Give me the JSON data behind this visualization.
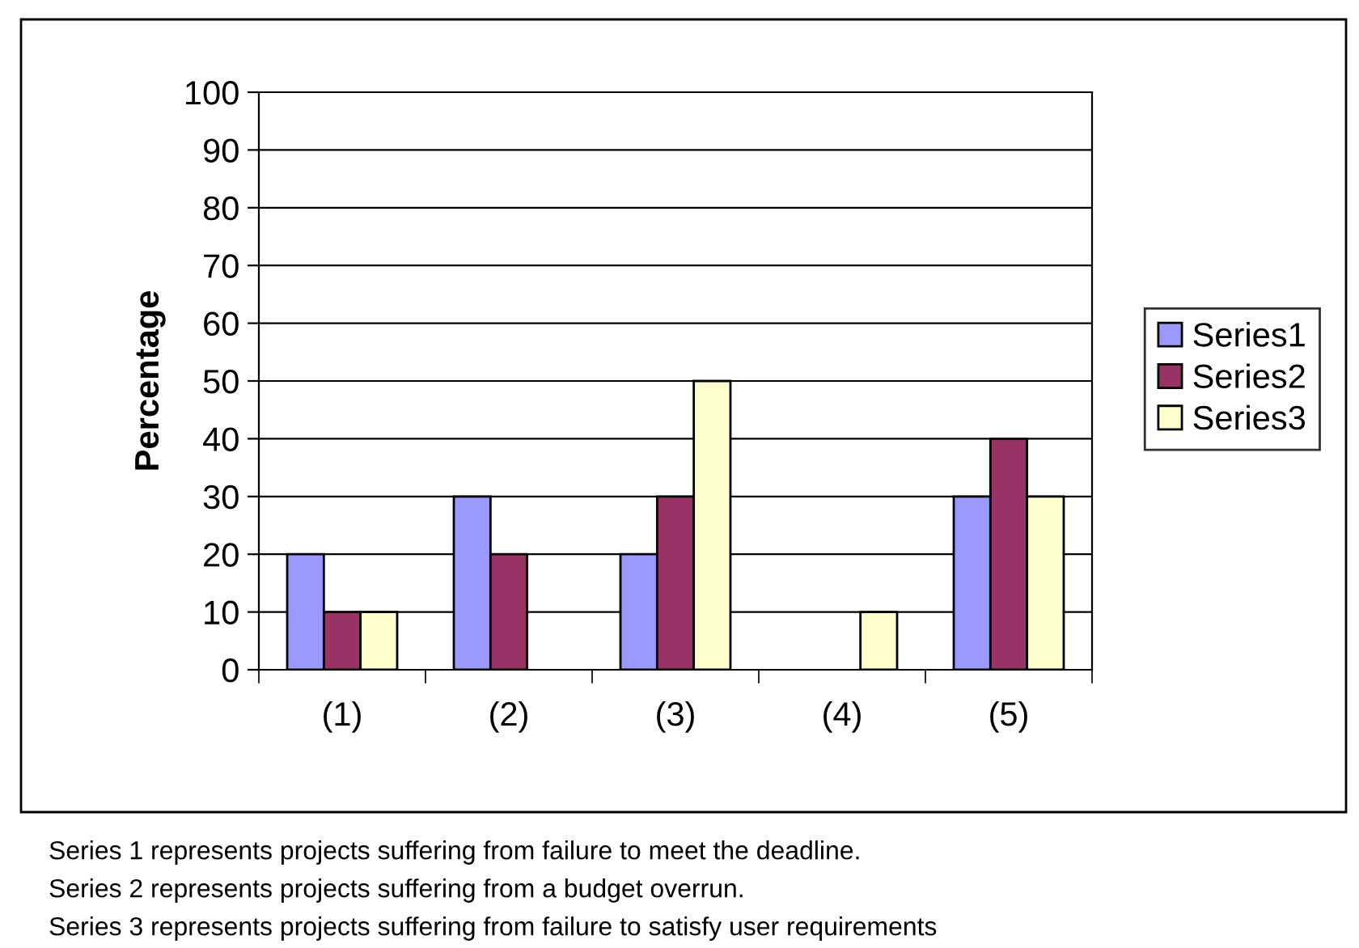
{
  "chart_data": {
    "type": "bar",
    "ylabel": "Percentage",
    "categories": [
      "(1)",
      "(2)",
      "(3)",
      "(4)",
      "(5)"
    ],
    "series": [
      {
        "name": "Series1",
        "color": "#9999ff",
        "values": [
          20,
          30,
          20,
          0,
          30
        ]
      },
      {
        "name": "Series2",
        "color": "#993366",
        "values": [
          10,
          20,
          30,
          0,
          40
        ]
      },
      {
        "name": "Series3",
        "color": "#ffffcc",
        "values": [
          10,
          0,
          50,
          10,
          30
        ]
      }
    ],
    "ylim": [
      0,
      100
    ],
    "yticks": [
      0,
      10,
      20,
      30,
      40,
      50,
      60,
      70,
      80,
      90,
      100
    ],
    "grid": "y",
    "legend": "right",
    "annotations": [
      "Series 1 represents projects suffering from failure to meet the deadline.",
      "Series 2 represents projects suffering from a budget overrun.",
      "Series 3 represents projects suffering from failure to satisfy user requirements"
    ]
  }
}
